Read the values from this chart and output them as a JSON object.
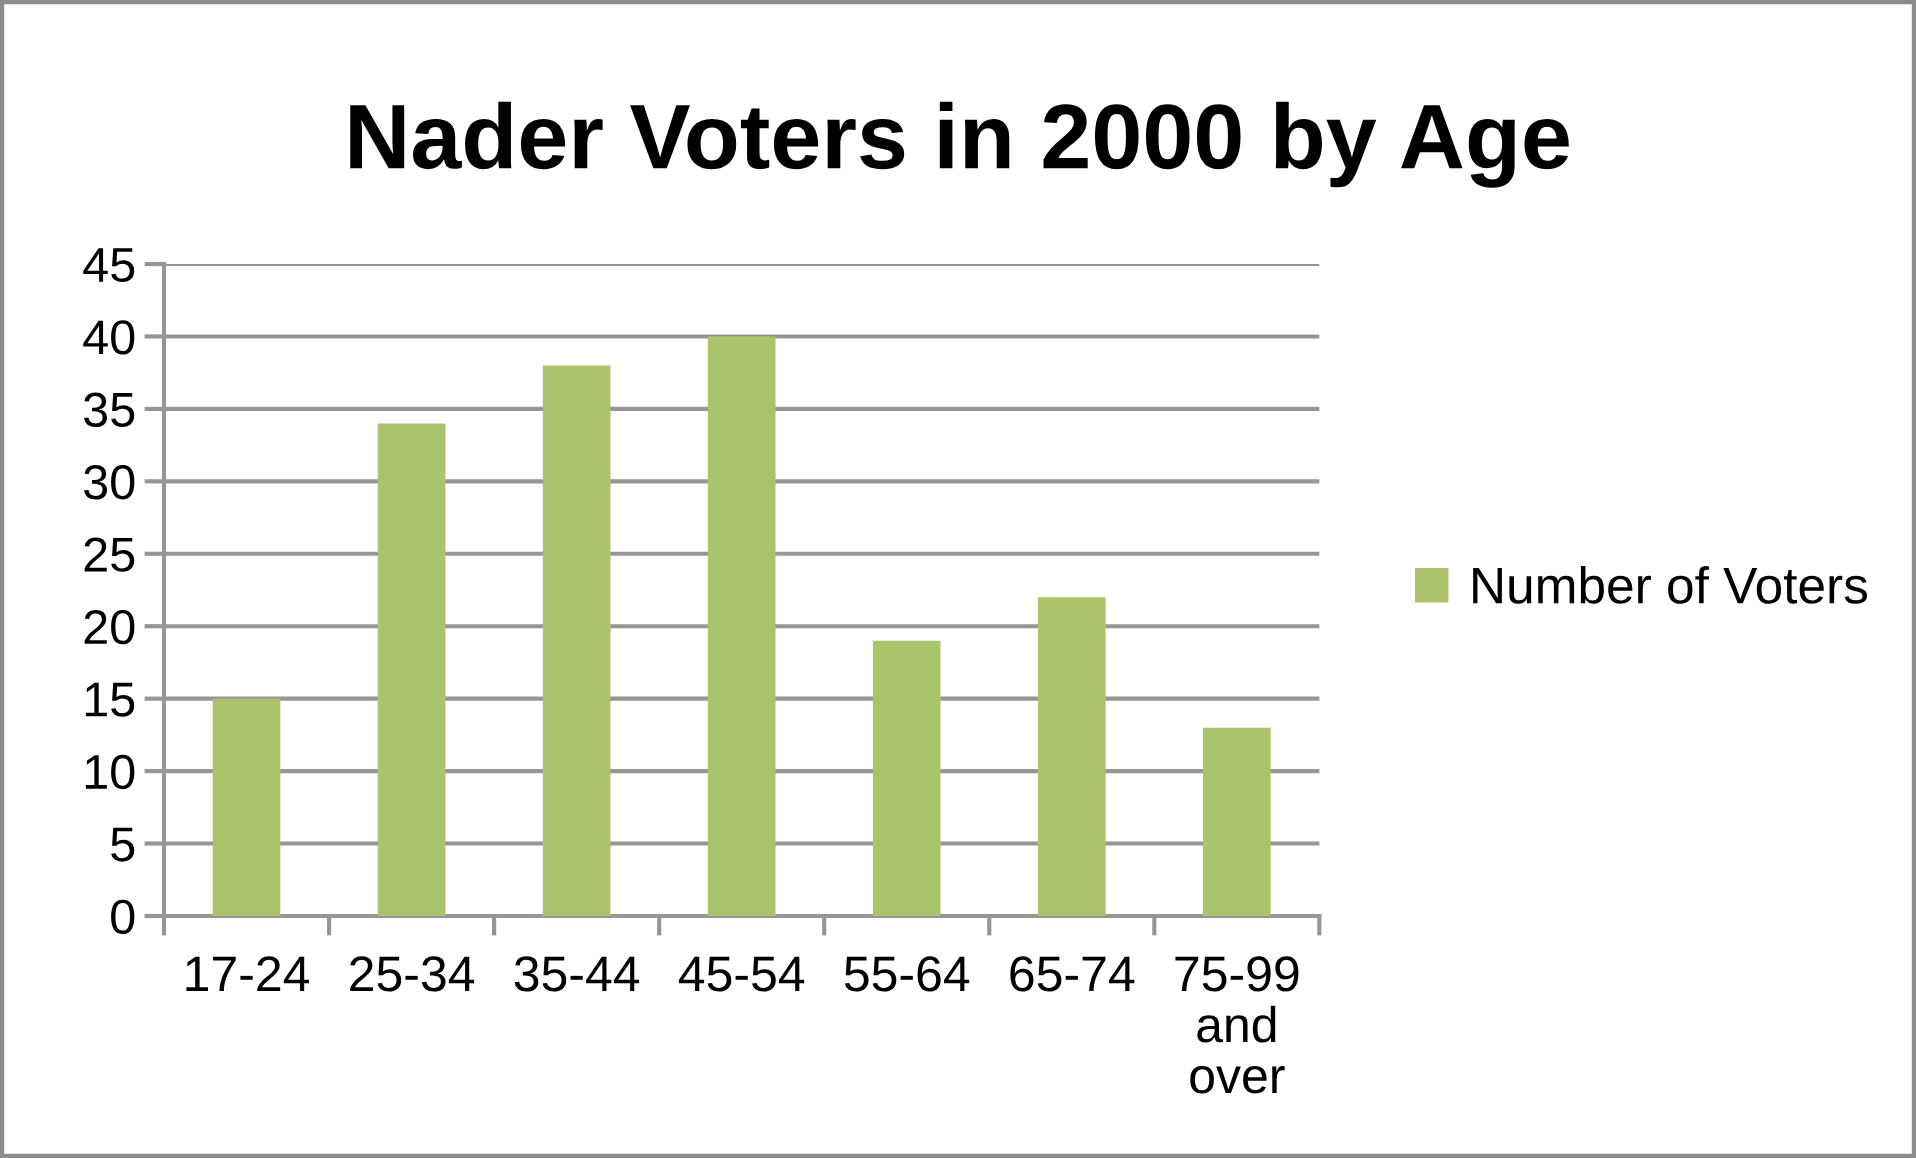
{
  "chart_data": {
    "type": "bar",
    "title": "Nader Voters in 2000 by Age",
    "categories": [
      "17-24",
      "25-34",
      "35-44",
      "45-54",
      "55-64",
      "65-74",
      "75-99 and over"
    ],
    "series": [
      {
        "name": "Number of Voters",
        "color": "#abc46b",
        "values": [
          15,
          34,
          38,
          40,
          19,
          22,
          13
        ]
      }
    ],
    "ylim": [
      0,
      45
    ],
    "yticks": [
      0,
      5,
      10,
      15,
      20,
      25,
      30,
      35,
      40,
      45
    ],
    "grid": "y",
    "legend": "right"
  }
}
